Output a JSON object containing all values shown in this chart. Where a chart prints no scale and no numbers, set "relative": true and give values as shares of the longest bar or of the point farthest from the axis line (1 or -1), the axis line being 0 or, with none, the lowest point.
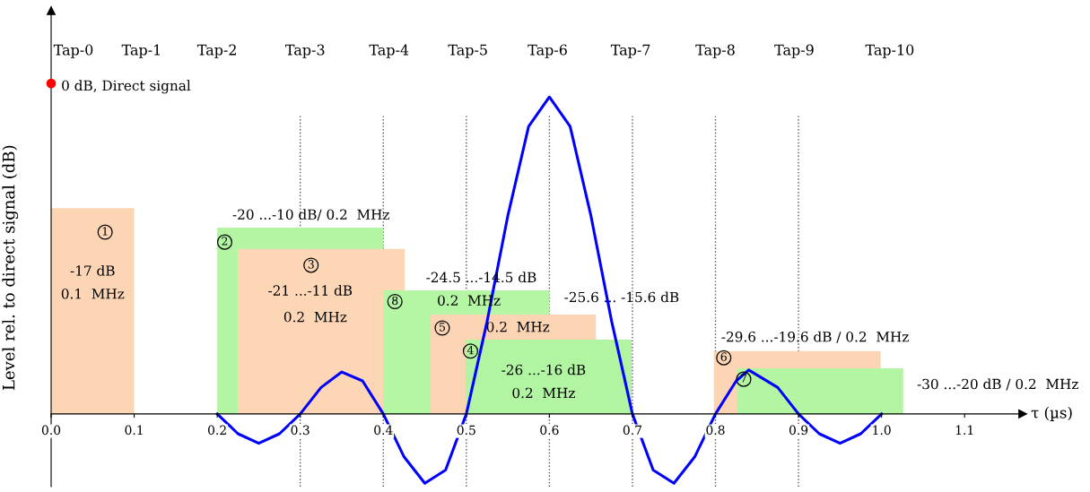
{
  "chart_data": {
    "type": "area",
    "relative": true,
    "xlabel": "τ (µs)",
    "ylabel": "Level rel. to direct signal (dB)",
    "xlim": [
      0,
      1.17
    ],
    "xticks": [
      {
        "value": 0,
        "label": "0.0"
      },
      {
        "value": 0.1,
        "label": "0.1"
      },
      {
        "value": 0.2,
        "label": "0.2"
      },
      {
        "value": 0.3,
        "label": "0.3"
      },
      {
        "value": 0.4,
        "label": "0.4"
      },
      {
        "value": 0.5,
        "label": "0.5"
      },
      {
        "value": 0.6,
        "label": "0.6"
      },
      {
        "value": 0.7,
        "label": "0.7"
      },
      {
        "value": 0.8,
        "label": "0.8"
      },
      {
        "value": 0.9,
        "label": "0.9"
      },
      {
        "value": 1.0,
        "label": "1.0"
      },
      {
        "value": 1.1,
        "label": "1.1"
      }
    ],
    "grid": false,
    "series": [
      {
        "color": "#fcd5b5",
        "x": [
          0,
          0.1
        ],
        "values": [
          0.623,
          0.623
        ]
      },
      {
        "color": "#b3f5a3",
        "x": [
          0.2,
          0.4
        ],
        "values": [
          0.564,
          0.564
        ]
      },
      {
        "color": "#fdd6b6",
        "x": [
          0.225,
          0.426
        ],
        "values": [
          0.499,
          0.499
        ]
      },
      {
        "color": "#b5f6a5",
        "x": [
          0.4,
          0.6
        ],
        "values": [
          0.374,
          0.374
        ]
      },
      {
        "color": "#fbd4b3",
        "x": [
          0.456,
          0.656
        ],
        "values": [
          0.301,
          0.301
        ]
      },
      {
        "color": "#b1f4a1",
        "x": [
          0.499,
          0.699
        ],
        "values": [
          0.225,
          0.225
        ]
      },
      {
        "color": "#fcd5b5",
        "x": [
          0.798,
          0.999
        ],
        "values": [
          0.19,
          0.19
        ]
      },
      {
        "color": "#b3f5a3",
        "x": [
          0.826,
          1.026
        ],
        "values": [
          0.138,
          0.138
        ]
      },
      {
        "type": "line",
        "color": "#0000ff",
        "x": [
          0.2,
          0.225,
          0.25,
          0.275,
          0.3,
          0.325,
          0.35,
          0.375,
          0.4,
          0.425,
          0.45,
          0.475,
          0.5,
          0.525,
          0.55,
          0.575,
          0.6,
          0.625,
          0.65,
          0.675,
          0.7,
          0.725,
          0.75,
          0.775,
          0.8,
          0.825,
          0.84,
          0.875,
          0.9,
          0.925,
          0.95,
          0.975,
          1.0
        ],
        "values": [
          0,
          -0.06,
          -0.089,
          -0.06,
          0,
          0.08,
          0.127,
          0.1,
          0,
          -0.13,
          -0.21,
          -0.17,
          0,
          0.28,
          0.6,
          0.87,
          0.959,
          0.87,
          0.6,
          0.28,
          0,
          -0.17,
          -0.21,
          -0.13,
          0,
          0.1,
          0.133,
          0.08,
          0,
          -0.06,
          -0.089,
          -0.06,
          0
        ]
      },
      {
        "type": "scatter",
        "color": "#ff0000",
        "x": [
          0
        ],
        "values": [
          1
        ]
      }
    ],
    "ref_lines": [
      {
        "axis": "x",
        "value": 0.3,
        "line_style": "dotted"
      },
      {
        "axis": "x",
        "value": 0.4,
        "line_style": "dotted"
      },
      {
        "axis": "x",
        "value": 0.5,
        "line_style": "dotted"
      },
      {
        "axis": "x",
        "value": 0.6,
        "line_style": "dotted"
      },
      {
        "axis": "x",
        "value": 0.7,
        "line_style": "dotted"
      },
      {
        "axis": "x",
        "value": 0.8,
        "line_style": "dotted"
      },
      {
        "axis": "x",
        "value": 0.9,
        "line_style": "dotted"
      }
    ],
    "annotations": [
      "Tap-0",
      "Tap-1",
      "Tap-2",
      "Tap-3",
      "Tap-4",
      "Tap-5",
      "Tap-6",
      "Tap-7",
      "Tap-8",
      "Tap-9",
      "Tap-10",
      "0 dB, Direct signal",
      "1",
      "-17 dB",
      "0.1  MHz",
      "-20 ...-10 dB/ 0.2  MHz",
      "2",
      "3",
      "-21 ...-11 dB",
      "0.2  MHz",
      "-24.5 ...-14.5 dB",
      "8",
      "0.2  MHz",
      "-25.6 ... -15.6 dB",
      "5",
      "0.2  MHz",
      "4",
      "-26 ...-16 dB",
      "0.2  MHz",
      "-29.6 ...-19.6 dB / 0.2  MHz",
      "6",
      "7",
      "-30 ...-20 dB / 0.2  MHz"
    ]
  }
}
